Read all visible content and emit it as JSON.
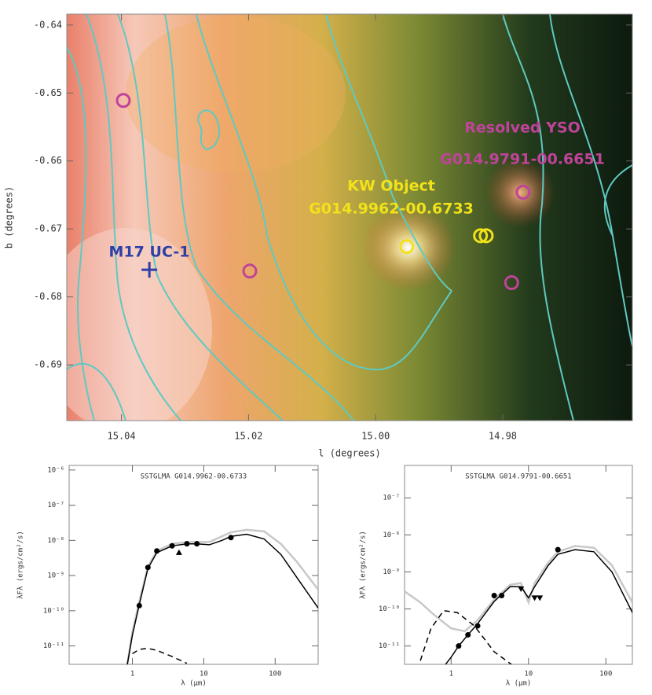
{
  "chart_data": [
    {
      "type": "scatter",
      "xlabel": "l (degrees)",
      "ylabel": "b (degrees)",
      "xlim": [
        15.0486,
        14.9596
      ],
      "ylim": [
        -0.6982,
        -0.6384
      ],
      "xticks": [
        15.04,
        15.02,
        {
          "value": 15,
          "label": "15.00"
        },
        14.98
      ],
      "yticks": [
        -0.64,
        -0.65,
        -0.66,
        -0.67,
        -0.68,
        -0.69
      ],
      "series": [
        {
          "style": "circle-open",
          "color": "#c0439a",
          "x": [
            15.0397,
            15.0198,
            14.9768,
            14.9786
          ],
          "y": [
            -0.6511,
            -0.6762,
            -0.6646,
            -0.6779
          ]
        },
        {
          "style": "circle-open",
          "color": "#f2e21a",
          "x": [
            14.9835,
            14.9826,
            14.9951
          ],
          "y": [
            -0.671,
            -0.671,
            -0.6726
          ]
        },
        {
          "style": "plus",
          "color": "#2e3fa8",
          "x": [
            15.0356
          ],
          "y": [
            -0.676
          ]
        }
      ],
      "annotations": [
        {
          "text": "Resolved YSO",
          "color": "#c0439a"
        },
        {
          "text": "G014.9791-00.6651",
          "color": "#c0439a"
        },
        {
          "text": "KW Object",
          "color": "#f2e21a"
        },
        {
          "text": "G014.9962-00.6733",
          "color": "#f2e21a"
        },
        {
          "text": "M17 UC-1",
          "color": "#2e3fa8"
        }
      ]
    },
    {
      "type": "line",
      "title": "SSTGLMA G014.9962-00.6733",
      "xlabel": "λ (μm)",
      "ylabel": "λFλ (ergs/cm²/s)",
      "xscale": "log",
      "yscale": "log",
      "xlim": [
        0.13,
        400
      ],
      "ylim": [
        3e-12,
        1.35e-06
      ],
      "xticks": [
        1,
        10,
        100
      ],
      "yticks": [
        {
          "value": 1e-11,
          "label": "10⁻¹¹"
        },
        {
          "value": 1e-10,
          "label": "10⁻¹⁰"
        },
        {
          "value": 1e-09,
          "label": "10⁻⁹"
        },
        {
          "value": 1e-08,
          "label": "10⁻⁸"
        },
        {
          "value": 1e-07,
          "label": "10⁻⁷"
        },
        {
          "value": 1e-06,
          "label": "10⁻⁶"
        }
      ],
      "series": [
        {
          "style": "line",
          "color": "#c8c8c8",
          "x": [
            0.85,
            1,
            1.25,
            1.65,
            2.2,
            3.6,
            5.8,
            8,
            12,
            18,
            24,
            40,
            70,
            120,
            200,
            400
          ],
          "y": [
            3e-12,
            2.5e-11,
            1.8e-10,
            1.8e-09,
            5e-09,
            8e-09,
            9e-09,
            9e-09,
            9e-09,
            1.3e-08,
            1.7e-08,
            2e-08,
            1.8e-08,
            8e-09,
            2.5e-09,
            4e-10
          ]
        },
        {
          "style": "line",
          "color": "#000000",
          "x": [
            0.85,
            1,
            1.25,
            1.65,
            2.2,
            3.6,
            5.8,
            8,
            12,
            18,
            24,
            40,
            70,
            120,
            200,
            400
          ],
          "y": [
            3e-12,
            2e-11,
            1.5e-10,
            1.6e-09,
            4.5e-09,
            7e-09,
            8e-09,
            8e-09,
            7.5e-09,
            1e-08,
            1.3e-08,
            1.5e-08,
            1.1e-08,
            4e-09,
            9e-10,
            1.2e-10
          ]
        },
        {
          "style": "dashed",
          "color": "#000000",
          "x": [
            1,
            1.25,
            1.65,
            2.2,
            3.6,
            5.8
          ],
          "y": [
            6e-12,
            8e-12,
            8.5e-12,
            7.5e-12,
            5e-12,
            3.2e-12
          ]
        },
        {
          "style": "circle",
          "color": "#000000",
          "x": [
            1.25,
            1.65,
            2.2,
            3.6,
            5.8,
            8,
            24
          ],
          "y": [
            1.4e-10,
            1.7e-09,
            5e-09,
            7e-09,
            8e-09,
            8e-09,
            1.2e-08
          ]
        },
        {
          "style": "triangle",
          "color": "#000000",
          "x": [
            4.5
          ],
          "y": [
            4.5e-09
          ]
        }
      ]
    },
    {
      "type": "line",
      "title": "SSTGLMA G014.9791-00.6651",
      "xlabel": "λ (μm)",
      "ylabel": "λFλ (ergs/cm²/s)",
      "xscale": "log",
      "yscale": "log",
      "xlim": [
        0.25,
        220
      ],
      "ylim": [
        3.2e-12,
        7.5e-07
      ],
      "xticks": [
        1,
        10,
        100
      ],
      "yticks": [
        {
          "value": 1e-11,
          "label": "10⁻¹¹"
        },
        {
          "value": 1e-10,
          "label": "10⁻¹⁰"
        },
        {
          "value": 1e-09,
          "label": "10⁻⁹"
        },
        {
          "value": 1e-08,
          "label": "10⁻⁸"
        },
        {
          "value": 1e-07,
          "label": "10⁻⁷"
        }
      ],
      "series": [
        {
          "style": "line",
          "color": "#c8c8c8",
          "x": [
            0.25,
            0.4,
            0.6,
            1,
            1.5,
            2.2,
            3.6,
            5.8,
            8,
            10,
            12,
            18,
            24,
            40,
            70,
            120,
            220
          ],
          "y": [
            3e-10,
            1.5e-10,
            7e-11,
            3e-11,
            2.5e-11,
            5e-11,
            1.8e-10,
            4.5e-10,
            5e-10,
            1.5e-10,
            5e-10,
            1.8e-09,
            3.5e-09,
            5e-09,
            4.5e-09,
            1.5e-09,
            1.5e-10
          ]
        },
        {
          "style": "line",
          "color": "#000000",
          "x": [
            0.85,
            1,
            1.25,
            1.65,
            2.2,
            3.6,
            5.8,
            8,
            10,
            12,
            18,
            24,
            40,
            70,
            120,
            220
          ],
          "y": [
            3.2e-12,
            5e-12,
            1e-11,
            2e-11,
            4e-11,
            1.6e-10,
            4e-10,
            4e-10,
            2e-10,
            4e-10,
            1.5e-09,
            3e-09,
            4e-09,
            3.5e-09,
            1e-09,
            8e-11
          ]
        },
        {
          "style": "dashed",
          "color": "#000000",
          "x": [
            0.4,
            0.55,
            0.8,
            1.2,
            2,
            3.6,
            6
          ],
          "y": [
            4e-12,
            3e-11,
            9e-11,
            8e-11,
            3.5e-11,
            7e-12,
            3.2e-12
          ]
        },
        {
          "style": "circle",
          "color": "#000000",
          "x": [
            1.25,
            1.65,
            2.2,
            3.6,
            4.5,
            24
          ],
          "y": [
            1e-11,
            2e-11,
            3.5e-11,
            2.3e-10,
            2.3e-10,
            4e-09
          ]
        },
        {
          "style": "triangle-down",
          "color": "#000000",
          "x": [
            8,
            12,
            14
          ],
          "y": [
            3.5e-10,
            2e-10,
            2e-10
          ]
        }
      ]
    }
  ]
}
